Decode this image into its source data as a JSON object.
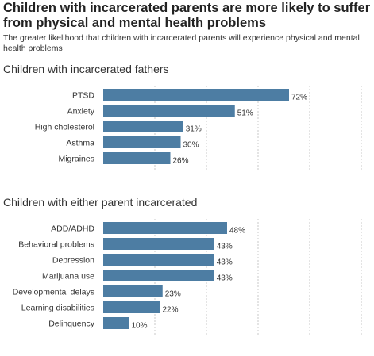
{
  "title": "Children with incarcerated parents are more likely to suffer from physical and mental health problems",
  "subtitle": "The greater likelihood that children with incarcerated parents will experience physical and mental health problems",
  "colors": {
    "bar": "#4d7da3",
    "grid": "#c8c8c8",
    "text": "#333333"
  },
  "chart_data": [
    {
      "type": "bar",
      "orientation": "horizontal",
      "title": "Children with incarcerated fathers",
      "categories": [
        "PTSD",
        "Anxiety",
        "High cholesterol",
        "Asthma",
        "Migraines"
      ],
      "values": [
        72,
        51,
        31,
        30,
        26
      ],
      "value_labels": [
        "72%",
        "51%",
        "31%",
        "30%",
        "26%"
      ],
      "xlim": [
        0,
        100
      ],
      "grid": "vertical dashed"
    },
    {
      "type": "bar",
      "orientation": "horizontal",
      "title": "Children with either parent incarcerated",
      "categories": [
        "ADD/ADHD",
        "Behavioral problems",
        "Depression",
        "Marijuana use",
        "Developmental delays",
        "Learning disabilities",
        "Delinquency"
      ],
      "values": [
        48,
        43,
        43,
        43,
        23,
        22,
        10
      ],
      "value_labels": [
        "48%",
        "43%",
        "43%",
        "43%",
        "23%",
        "22%",
        "10%"
      ],
      "xlim": [
        0,
        100
      ],
      "grid": "vertical dashed"
    }
  ]
}
